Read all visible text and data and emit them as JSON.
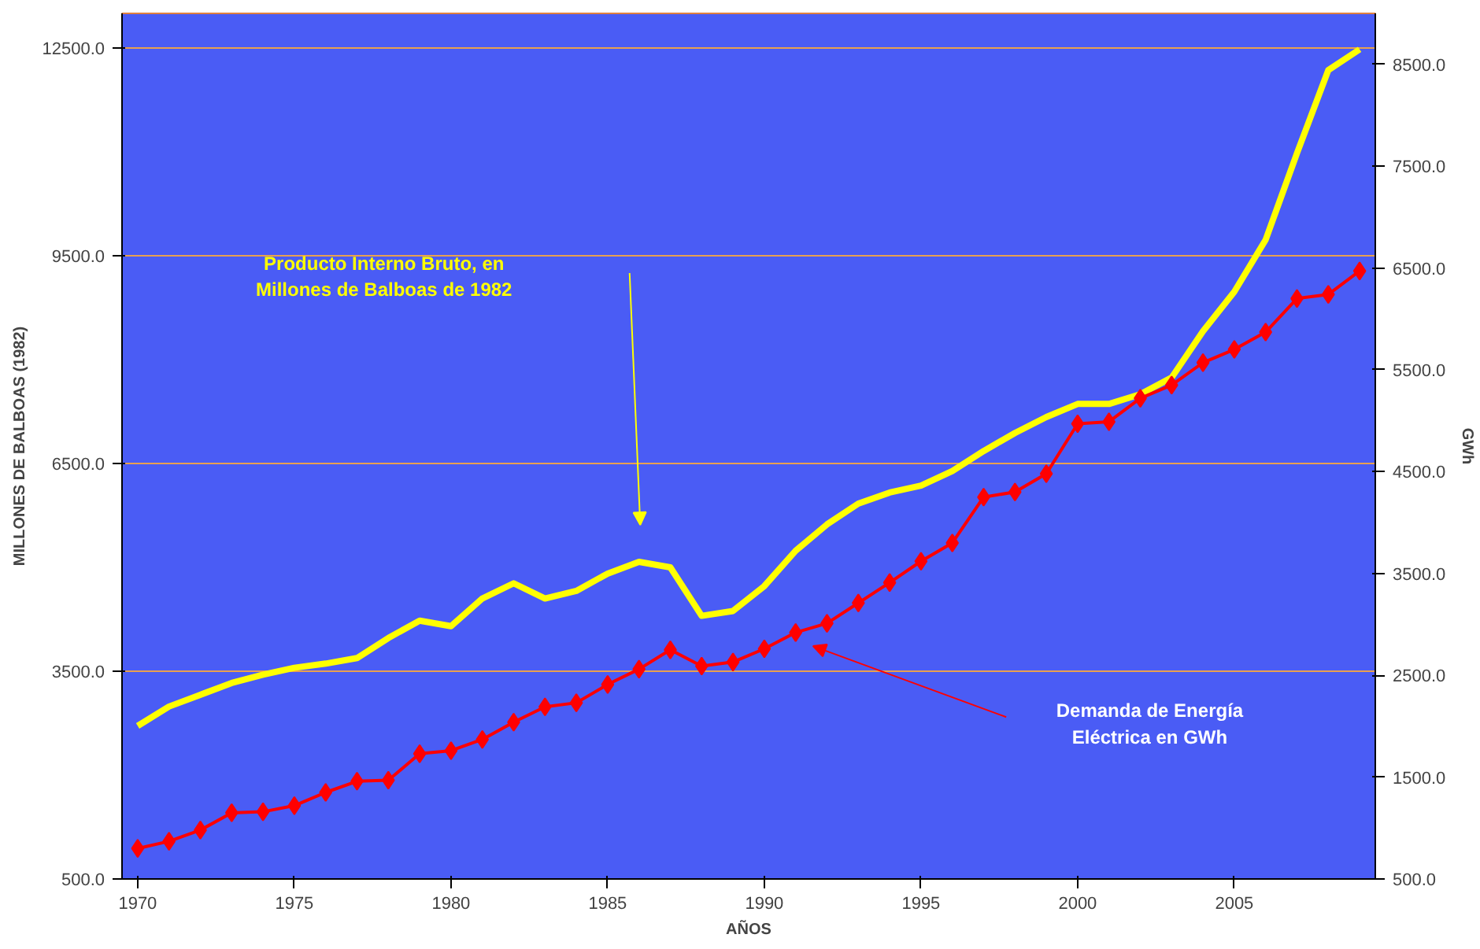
{
  "chart_data": {
    "type": "line",
    "xlabel": "AÑOS",
    "ylabel": "MILLONES DE BALBOAS (1982)",
    "y2label": "GWh",
    "x": [
      1970,
      1971,
      1972,
      1973,
      1974,
      1975,
      1976,
      1977,
      1978,
      1979,
      1980,
      1981,
      1982,
      1983,
      1984,
      1985,
      1986,
      1987,
      1988,
      1989,
      1990,
      1991,
      1992,
      1993,
      1994,
      1995,
      1996,
      1997,
      1998,
      1999,
      2000,
      2001,
      2002,
      2003,
      2004,
      2005,
      2006,
      2007,
      2008,
      2009
    ],
    "series": [
      {
        "color": "#ffff00",
        "marker": "none",
        "values": [
          2710,
          2990,
          3160,
          3330,
          3450,
          3550,
          3610,
          3690,
          3980,
          4230,
          4150,
          4550,
          4770,
          4550,
          4660,
          4910,
          5080,
          5000,
          4300,
          4370,
          4730,
          5240,
          5620,
          5920,
          6080,
          6180,
          6390,
          6680,
          6940,
          7170,
          7360,
          7360,
          7500,
          7740,
          8410,
          8980,
          9730,
          10980,
          12180,
          12480
        ]
      },
      {
        "color": "#ff0000",
        "marker": "diamond",
        "axis": "y2",
        "values": [
          800,
          870,
          980,
          1150,
          1160,
          1220,
          1350,
          1460,
          1470,
          1730,
          1760,
          1870,
          2040,
          2190,
          2230,
          2410,
          2560,
          2750,
          2590,
          2630,
          2760,
          2920,
          3010,
          3210,
          3410,
          3620,
          3800,
          4250,
          4300,
          4480,
          4970,
          4990,
          5220,
          5350,
          5570,
          5700,
          5870,
          6200,
          6240,
          6470
        ]
      }
    ],
    "annotations": [
      "Producto Interno Bruto, en\nMillones de Balboas de 1982",
      "Demanda de Energía\nEléctrica en GWh"
    ],
    "xlim": [
      1969.5,
      2009.5
    ],
    "xticks": [
      1970,
      1975,
      1980,
      1985,
      1990,
      1995,
      2000,
      2005
    ],
    "ylim": [
      500,
      13000
    ],
    "yticks": [
      {
        "value": 500,
        "label": "500.0"
      },
      {
        "value": 3500,
        "label": "3500.0"
      },
      {
        "value": 6500,
        "label": "6500.0"
      },
      {
        "value": 9500,
        "label": "9500.0"
      },
      {
        "value": 12500,
        "label": "12500.0"
      }
    ],
    "y2lim": [
      500,
      9000
    ],
    "y2ticks": [
      {
        "value": 500,
        "label": "500.0"
      },
      {
        "value": 1500,
        "label": "1500.0"
      },
      {
        "value": 2500,
        "label": "2500.0"
      },
      {
        "value": 3500,
        "label": "3500.0"
      },
      {
        "value": 4500,
        "label": "4500.0"
      },
      {
        "value": 5500,
        "label": "5500.0"
      },
      {
        "value": 6500,
        "label": "6500.0"
      },
      {
        "value": 7500,
        "label": "7500.0"
      },
      {
        "value": 8500,
        "label": "8500.0"
      }
    ],
    "grid": "y",
    "legend": false
  }
}
